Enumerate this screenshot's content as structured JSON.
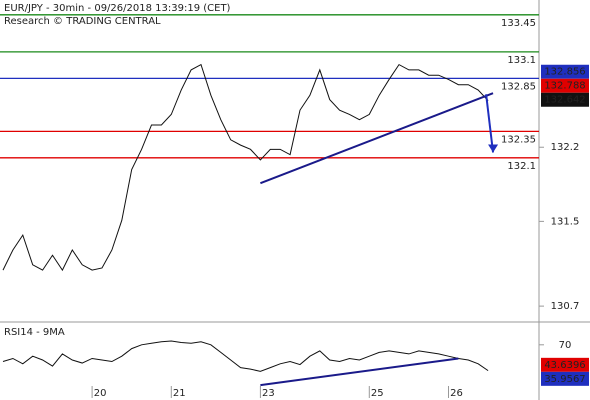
{
  "chart_data": {
    "type": "line",
    "title": "EUR/JPY - 30min - 09/26/2018 13:39:19 (CET)",
    "subtitle": "Research © TRADING CENTRAL",
    "categories": [
      null,
      null,
      null,
      null,
      null,
      null,
      null,
      null,
      null,
      "20",
      null,
      null,
      null,
      null,
      null,
      null,
      null,
      "21",
      null,
      null,
      null,
      null,
      null,
      null,
      null,
      null,
      "23",
      null,
      null,
      null,
      null,
      null,
      null,
      null,
      null,
      null,
      null,
      "25",
      null,
      null,
      null,
      null,
      null,
      null,
      null,
      "26",
      null,
      null,
      null,
      null
    ],
    "values": [
      131.04,
      131.23,
      131.37,
      131.09,
      131.04,
      131.18,
      131.04,
      131.23,
      131.09,
      131.04,
      131.06,
      131.23,
      131.51,
      131.99,
      132.18,
      132.41,
      132.41,
      132.51,
      132.74,
      132.93,
      132.98,
      132.69,
      132.46,
      132.27,
      132.22,
      132.18,
      132.08,
      132.18,
      132.18,
      132.13,
      132.55,
      132.69,
      132.93,
      132.65,
      132.55,
      132.51,
      132.46,
      132.51,
      132.69,
      132.84,
      132.98,
      132.93,
      132.93,
      132.88,
      132.88,
      132.84,
      132.79,
      132.79,
      132.74,
      132.64
    ],
    "color": "#111111",
    "ylim": [
      130.55,
      133.59
    ],
    "yticks": [
      132.2,
      131.5,
      130.7
    ],
    "levels": [
      {
        "value": 133.45,
        "color": "#1a8a1a"
      },
      {
        "value": 133.1,
        "color": "#1a8a1a"
      },
      {
        "value": 132.85,
        "color": "#1f2fbf"
      },
      {
        "value": 132.35,
        "color": "#e00000"
      },
      {
        "value": 132.1,
        "color": "#e00000"
      }
    ],
    "price_tags": [
      {
        "value": 132.856,
        "color": "#1f2fbf"
      },
      {
        "value": 132.788,
        "color": "#e00000"
      },
      {
        "value": 132.642,
        "color": "#111111"
      }
    ],
    "trendline": {
      "x": [
        26,
        49.5
      ],
      "values": [
        131.86,
        132.71
      ],
      "color": "#1a1a8a"
    },
    "arrow": {
      "x": [
        48.8,
        49.5
      ],
      "values": [
        132.7,
        132.15
      ],
      "color": "#1f2fbf"
    },
    "rsi": {
      "title": "RSI14 - 9MA",
      "values": [
        48,
        52,
        45,
        55,
        50,
        42,
        58,
        50,
        46,
        52,
        50,
        48,
        55,
        65,
        70,
        72,
        74,
        75,
        73,
        72,
        74,
        70,
        60,
        50,
        40,
        38,
        35,
        40,
        45,
        48,
        44,
        55,
        62,
        50,
        48,
        52,
        50,
        55,
        60,
        62,
        60,
        58,
        62,
        60,
        58,
        55,
        52,
        50,
        45,
        36
      ],
      "color": "#111111",
      "ylim": [
        0,
        100
      ],
      "yticks": [
        70
      ],
      "trendline": {
        "x": [
          26,
          46
        ],
        "values": [
          17,
          52
        ],
        "color": "#1a1a8a"
      },
      "tags": [
        {
          "value": 43.6396,
          "color": "#e00000"
        },
        {
          "value": 35.9567,
          "color": "#1f2fbf"
        }
      ]
    }
  }
}
